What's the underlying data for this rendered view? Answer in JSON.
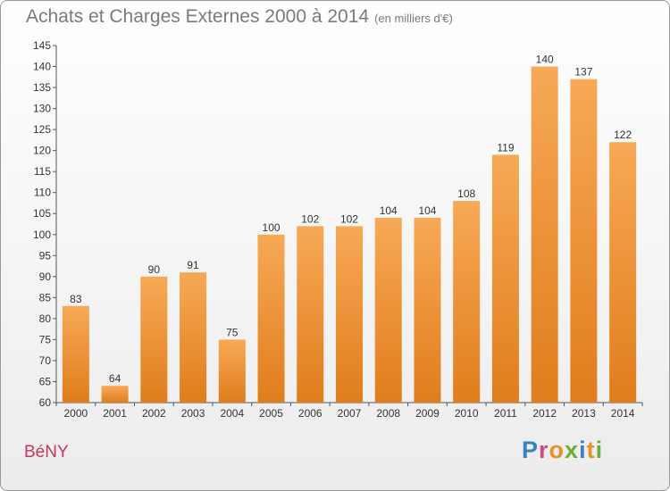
{
  "header": {
    "title": "Achats et Charges Externes 2000 à 2014",
    "unit": "(en milliers d'€)"
  },
  "footer": {
    "commune": "BéNY",
    "brand": [
      "P",
      "r",
      "o",
      "x",
      "i",
      "t",
      "i"
    ]
  },
  "colors": {
    "bar_top": "#f7a956",
    "bar_bottom": "#e07d1c",
    "commune": "#c9375f",
    "brand": [
      "#3b82c4",
      "#d0478a",
      "#e8922a",
      "#6cae3a",
      "#3b82c4",
      "#e8922a",
      "#6cae3a"
    ]
  },
  "chart_data": {
    "type": "bar",
    "title": "Achats et Charges Externes 2000 à 2014",
    "subtitle": "(en milliers d'€)",
    "categories": [
      "2000",
      "2001",
      "2002",
      "2003",
      "2004",
      "2005",
      "2006",
      "2007",
      "2008",
      "2009",
      "2010",
      "2011",
      "2012",
      "2013",
      "2014"
    ],
    "values": [
      83,
      64,
      90,
      91,
      75,
      100,
      102,
      102,
      104,
      104,
      108,
      119,
      140,
      137,
      122
    ],
    "ylim": [
      60,
      145
    ],
    "yticks": [
      60,
      65,
      70,
      75,
      80,
      85,
      90,
      95,
      100,
      105,
      110,
      115,
      120,
      125,
      130,
      135,
      140,
      145
    ],
    "grid": false,
    "legend": "none"
  }
}
